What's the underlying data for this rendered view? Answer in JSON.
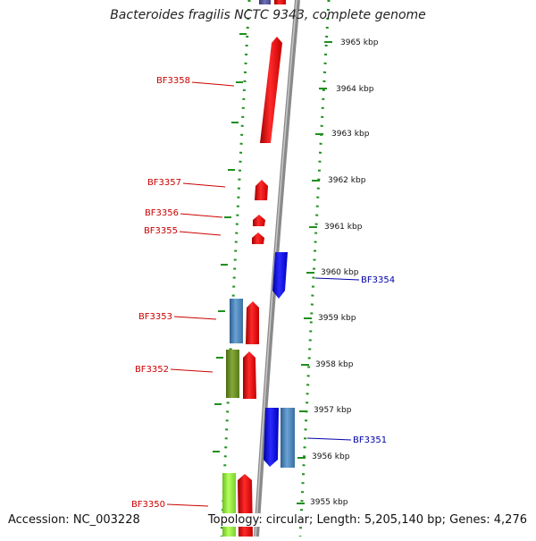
{
  "title": "Bacteroides fragilis NCTC 9343, complete genome",
  "accession": "Accession: NC_003228",
  "topology": "Topology: circular; Length: 5,205,140 bp; Genes: 4,276",
  "colors": {
    "red": "#ee1111",
    "blue": "#1a1aee",
    "steelblue": "#4a86bd",
    "olive": "#6b8e23",
    "lime": "#8fe03a",
    "purple": "#55559a",
    "tick_green": "#1f8f1f",
    "label_red": "#cc0000",
    "label_blue": "#0000aa",
    "backbone": "#8a8a8a"
  },
  "scale_labels": [
    "3965 kbp",
    "3964 kbp",
    "3963 kbp",
    "3962 kbp",
    "3961 kbp",
    "3960 kbp",
    "3959 kbp",
    "3958 kbp",
    "3957 kbp",
    "3956 kbp",
    "3955 kbp"
  ],
  "genes": [
    {
      "label": "BF3358",
      "color": "red"
    },
    {
      "label": "BF3357",
      "color": "red"
    },
    {
      "label": "BF3356",
      "color": "red"
    },
    {
      "label": "BF3355",
      "color": "red"
    },
    {
      "label": "BF3354",
      "color": "blue"
    },
    {
      "label": "BF3353",
      "color": "red"
    },
    {
      "label": "BF3352",
      "color": "red"
    },
    {
      "label": "BF3351",
      "color": "blue"
    },
    {
      "label": "BF3350",
      "color": "red"
    }
  ]
}
